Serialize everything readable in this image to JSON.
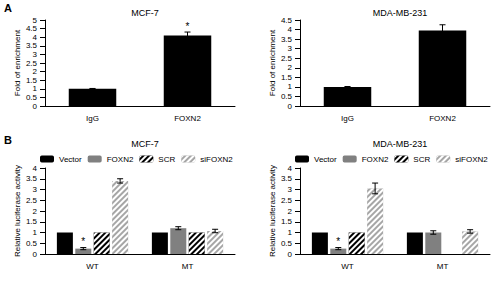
{
  "panel_labels": [
    "A",
    "B"
  ],
  "chart_data": [
    {
      "type": "bar",
      "title": "MCF-7",
      "y_label": "Fold of enrichment",
      "categories": [
        "IgG",
        "FOXN2"
      ],
      "values": [
        1,
        4.1
      ],
      "errors": [
        0.02,
        0.2
      ],
      "color": "#000000",
      "annotations": [
        {
          "text": "*",
          "category": "FOXN2"
        }
      ],
      "ylim": [
        0,
        5
      ],
      "yticks": [
        0,
        0.5,
        1,
        1.5,
        2,
        2.5,
        3,
        3.5,
        4,
        4.5,
        5
      ],
      "grid": false
    },
    {
      "type": "bar",
      "title": "MDA-MB-231",
      "y_label": "Fold of enrichment",
      "categories": [
        "IgG",
        "FOXN2"
      ],
      "values": [
        1,
        3.95
      ],
      "errors": [
        0.02,
        0.3
      ],
      "color": "#000000",
      "ylim": [
        0,
        4.5
      ],
      "yticks": [
        0,
        0.5,
        1,
        1.5,
        2,
        2.5,
        3,
        3.5,
        4,
        4.5
      ],
      "grid": false
    },
    {
      "type": "bar",
      "title": "MCF-7",
      "y_label": "Relative luciferase activity",
      "categories": [
        "WT",
        "MT"
      ],
      "series": [
        {
          "name": "Vector",
          "color": "#000000",
          "values": [
            1,
            1
          ],
          "errors": [
            0,
            0
          ]
        },
        {
          "name": "FOXN2",
          "color": "#808080",
          "values": [
            0.25,
            1.2
          ],
          "errors": [
            0.05,
            0.07
          ]
        },
        {
          "name": "SCR",
          "color": "#000000",
          "values": [
            1,
            1
          ],
          "errors": [
            0,
            0
          ]
        },
        {
          "name": "siFOXN2",
          "color": "#a6a6a6",
          "values": [
            3.4,
            1.07
          ],
          "errors": [
            0.1,
            0.08
          ]
        }
      ],
      "annotations": [
        {
          "text": "*",
          "category": "WT",
          "series": "FOXN2"
        }
      ],
      "legend": "top",
      "ylim": [
        0,
        4
      ],
      "yticks": [
        0,
        0.5,
        1,
        1.5,
        2,
        2.5,
        3,
        3.5,
        4
      ],
      "grid": false
    },
    {
      "type": "bar",
      "title": "MDA-MB-231",
      "y_label": "Relative luciferase activity",
      "categories": [
        "WT",
        "MT"
      ],
      "series": [
        {
          "name": "Vector",
          "color": "#000000",
          "values": [
            1,
            1
          ],
          "errors": [
            0,
            0
          ]
        },
        {
          "name": "FOXN2",
          "color": "#808080",
          "values": [
            0.25,
            1.0
          ],
          "errors": [
            0.05,
            0.08
          ]
        },
        {
          "name": "SCR",
          "color": "#000000",
          "values": [
            1,
            null
          ],
          "errors": [
            0,
            null
          ]
        },
        {
          "name": "siFOXN2",
          "color": "#a6a6a6",
          "values": [
            3.05,
            1.05
          ],
          "errors": [
            0.25,
            0.08
          ]
        }
      ],
      "annotations": [
        {
          "text": "*",
          "category": "WT",
          "series": "FOXN2"
        }
      ],
      "legend": "top",
      "ylim": [
        0,
        4
      ],
      "yticks": [
        0,
        0.5,
        1,
        1.5,
        2,
        2.5,
        3,
        3.5,
        4
      ],
      "grid": false
    }
  ]
}
